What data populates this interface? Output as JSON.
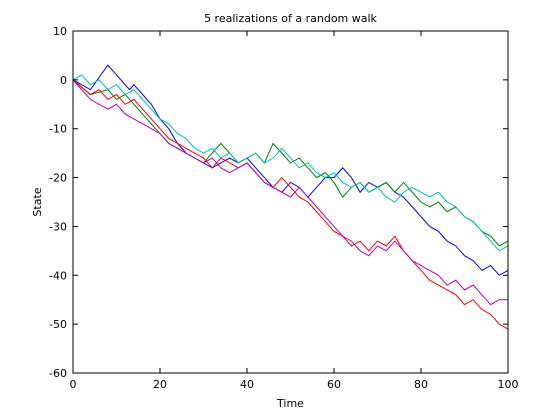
{
  "chart_data": {
    "type": "line",
    "title": "5 realizations of a random walk",
    "xlabel": "Time",
    "ylabel": "State",
    "xlim": [
      0,
      100
    ],
    "ylim": [
      -60,
      10
    ],
    "xticks": [
      0,
      20,
      40,
      60,
      80,
      100
    ],
    "yticks": [
      10,
      0,
      -10,
      -20,
      -30,
      -40,
      -50,
      -60
    ],
    "grid": false,
    "legend": "none",
    "series": [
      {
        "color": "#0000ff",
        "x": [
          0,
          4,
          8,
          10,
          12,
          13,
          14,
          16,
          18,
          20,
          22,
          24,
          26,
          28,
          30,
          32,
          34,
          36,
          38,
          40,
          42,
          44,
          46,
          48,
          50,
          52,
          54,
          56,
          58,
          60,
          62,
          64,
          66,
          68,
          70,
          72,
          74,
          76,
          78,
          80,
          82,
          84,
          86,
          88,
          90,
          92,
          94,
          96,
          98,
          100
        ],
        "y": [
          0,
          -2,
          3,
          1,
          -1,
          -2,
          -1,
          -3,
          -5,
          -8,
          -10,
          -13,
          -15,
          -16,
          -17,
          -18,
          -17,
          -16,
          -17,
          -16,
          -18,
          -20,
          -22,
          -23,
          -21,
          -22,
          -24,
          -22,
          -20,
          -20,
          -18,
          -20,
          -23,
          -21,
          -22,
          -21,
          -23,
          -24,
          -26,
          -28,
          -30,
          -31,
          -33,
          -34,
          -36,
          -37,
          -39,
          -38,
          -40,
          -39
        ]
      },
      {
        "color": "#008000",
        "x": [
          0,
          4,
          8,
          10,
          12,
          14,
          16,
          18,
          20,
          22,
          24,
          26,
          28,
          30,
          32,
          34,
          36,
          38,
          40,
          42,
          44,
          46,
          48,
          50,
          52,
          54,
          56,
          58,
          60,
          62,
          64,
          66,
          68,
          70,
          72,
          74,
          76,
          78,
          80,
          82,
          84,
          86,
          88,
          90,
          92,
          94,
          96,
          98,
          100
        ],
        "y": [
          0,
          -3,
          -2,
          -4,
          -3,
          -5,
          -7,
          -9,
          -11,
          -13,
          -14,
          -15,
          -16,
          -17,
          -15,
          -13,
          -15,
          -17,
          -16,
          -15,
          -17,
          -13,
          -15,
          -17,
          -16,
          -18,
          -20,
          -19,
          -21,
          -24,
          -22,
          -21,
          -23,
          -22,
          -21,
          -23,
          -21,
          -23,
          -25,
          -26,
          -25,
          -27,
          -26,
          -28,
          -29,
          -31,
          -32,
          -34,
          -33
        ]
      },
      {
        "color": "#ff0000",
        "x": [
          0,
          4,
          6,
          8,
          10,
          12,
          14,
          16,
          18,
          20,
          22,
          24,
          26,
          28,
          30,
          32,
          34,
          36,
          38,
          40,
          42,
          44,
          46,
          48,
          50,
          52,
          54,
          56,
          58,
          60,
          62,
          64,
          66,
          68,
          70,
          72,
          74,
          76,
          78,
          80,
          82,
          84,
          86,
          88,
          90,
          92,
          94,
          96,
          98,
          100
        ],
        "y": [
          0,
          -3,
          -2,
          -4,
          -3,
          -5,
          -4,
          -6,
          -8,
          -10,
          -12,
          -13,
          -14,
          -15,
          -16,
          -18,
          -16,
          -17,
          -18,
          -17,
          -19,
          -21,
          -22,
          -20,
          -22,
          -24,
          -25,
          -27,
          -29,
          -31,
          -32,
          -34,
          -33,
          -35,
          -33,
          -34,
          -32,
          -35,
          -37,
          -39,
          -41,
          -42,
          -43,
          -44,
          -46,
          -45,
          -47,
          -48,
          -50,
          -51
        ]
      },
      {
        "color": "#00bfbf",
        "x": [
          0,
          2,
          4,
          6,
          8,
          10,
          12,
          14,
          16,
          18,
          20,
          22,
          24,
          26,
          28,
          30,
          32,
          34,
          36,
          38,
          40,
          42,
          44,
          46,
          48,
          50,
          52,
          54,
          56,
          58,
          60,
          62,
          64,
          66,
          68,
          70,
          72,
          74,
          76,
          78,
          80,
          82,
          84,
          86,
          88,
          90,
          92,
          94,
          96,
          98,
          100
        ],
        "y": [
          0,
          1,
          -1,
          0,
          -2,
          -1,
          -3,
          -2,
          -4,
          -6,
          -8,
          -9,
          -11,
          -12,
          -14,
          -15,
          -14,
          -16,
          -15,
          -17,
          -16,
          -15,
          -17,
          -16,
          -14,
          -16,
          -18,
          -17,
          -19,
          -20,
          -19,
          -21,
          -22,
          -21,
          -23,
          -22,
          -24,
          -25,
          -23,
          -22,
          -23,
          -24,
          -23,
          -25,
          -26,
          -28,
          -29,
          -31,
          -33,
          -35,
          -34
        ]
      },
      {
        "color": "#bf00bf",
        "x": [
          0,
          2,
          4,
          6,
          8,
          10,
          12,
          14,
          16,
          18,
          20,
          22,
          24,
          26,
          28,
          30,
          32,
          34,
          36,
          38,
          40,
          42,
          44,
          46,
          48,
          50,
          52,
          54,
          56,
          58,
          60,
          62,
          64,
          66,
          68,
          70,
          72,
          74,
          76,
          78,
          80,
          82,
          84,
          86,
          88,
          90,
          92,
          94,
          96,
          98,
          100
        ],
        "y": [
          0,
          -2,
          -4,
          -5,
          -6,
          -5,
          -7,
          -8,
          -9,
          -10,
          -11,
          -13,
          -14,
          -15,
          -16,
          -17,
          -16,
          -18,
          -19,
          -18,
          -17,
          -19,
          -21,
          -22,
          -23,
          -24,
          -22,
          -24,
          -26,
          -28,
          -30,
          -32,
          -33,
          -35,
          -36,
          -34,
          -35,
          -33,
          -35,
          -37,
          -38,
          -39,
          -40,
          -42,
          -41,
          -43,
          -42,
          -44,
          -46,
          -45,
          -45
        ]
      }
    ]
  }
}
